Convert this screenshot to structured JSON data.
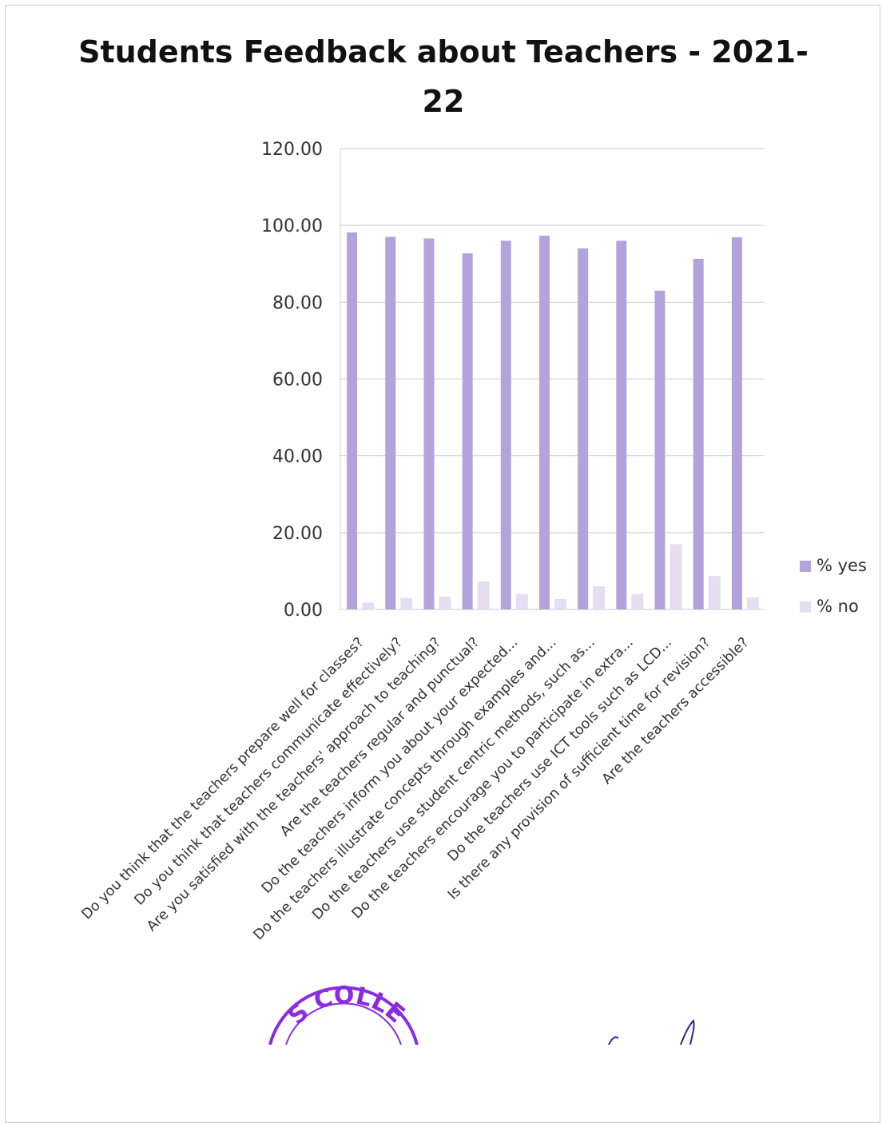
{
  "chart_data": {
    "type": "bar",
    "title": "Students Feedback about Teachers - 2021-22",
    "title_lines": [
      "Students Feedback about Teachers - 2021-",
      "22"
    ],
    "categories": [
      "Do you think that the teachers prepare well for classes?",
      "Do you think that teachers communicate effectively?",
      "Are you satisfied with the teachers' approach to teaching?",
      "Are the teachers regular and punctual?",
      "Do the teachers inform you about your expected...",
      "Do the teachers illustrate concepts through examples and...",
      "Do the teachers use student centric methods, such as...",
      "Do the teachers encourage you to participate in extra...",
      "Do the teachers use ICT tools such as LCD...",
      "Is there any provision of sufficient time for revision?",
      "Are the teachers accessible?"
    ],
    "series": [
      {
        "name": "% yes",
        "values": [
          98.2,
          97.0,
          96.6,
          92.7,
          96.0,
          97.3,
          94.0,
          96.0,
          83.0,
          91.3,
          96.9
        ],
        "color": "#b3a3dd"
      },
      {
        "name": "% no",
        "values": [
          1.8,
          3.0,
          3.4,
          7.3,
          4.0,
          2.7,
          6.0,
          4.0,
          17.0,
          8.7,
          3.1
        ],
        "color": "#e6ddf2"
      }
    ],
    "ylim": [
      0,
      120
    ],
    "yticks": [
      "0.00",
      "20.00",
      "40.00",
      "60.00",
      "80.00",
      "100.00",
      "120.00"
    ],
    "grid": true,
    "legend_position": "right"
  },
  "stamp": {
    "text": "S COLLE",
    "color": "#8a2be2"
  },
  "signature": {
    "color": "#2a2a8a"
  }
}
